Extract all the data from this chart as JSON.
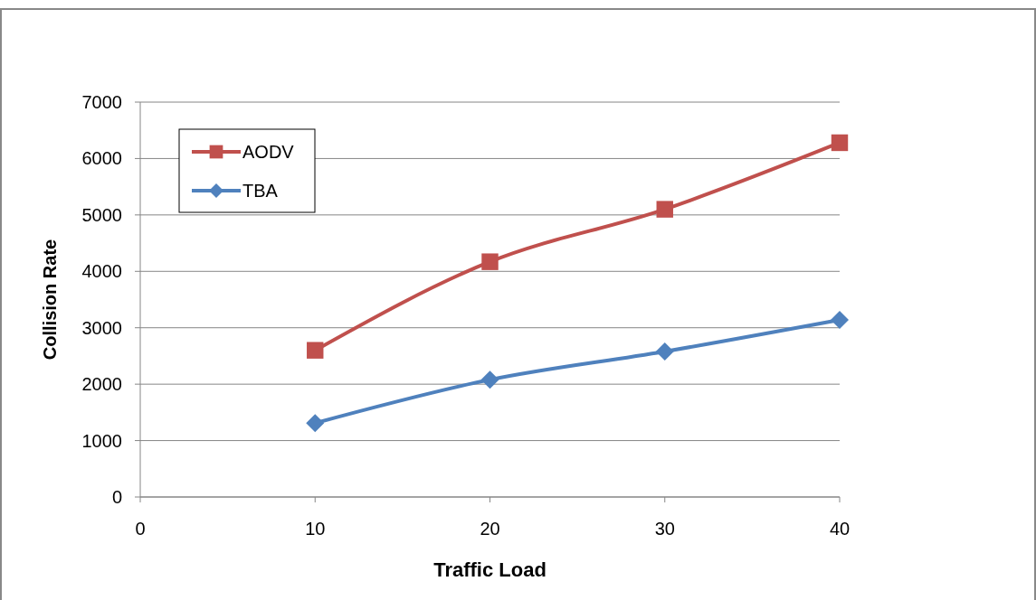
{
  "chart_data": {
    "type": "line",
    "xlabel": "Traffic Load",
    "ylabel": "Collision Rate",
    "x": [
      10,
      20,
      30,
      40
    ],
    "series": [
      {
        "name": "AODV",
        "color": "#c0504d",
        "marker": "square",
        "values": [
          2600,
          4170,
          5100,
          6280
        ]
      },
      {
        "name": "TBA",
        "color": "#4f81bd",
        "marker": "diamond",
        "values": [
          1310,
          2080,
          2580,
          3140
        ]
      }
    ],
    "xlim": [
      0,
      40
    ],
    "xticks": [
      0,
      10,
      20,
      30,
      40
    ],
    "ylim": [
      0,
      7000
    ],
    "yticks": [
      0,
      1000,
      2000,
      3000,
      4000,
      5000,
      6000,
      7000
    ],
    "grid": "y",
    "legend": "top left",
    "line_style": "solid"
  }
}
